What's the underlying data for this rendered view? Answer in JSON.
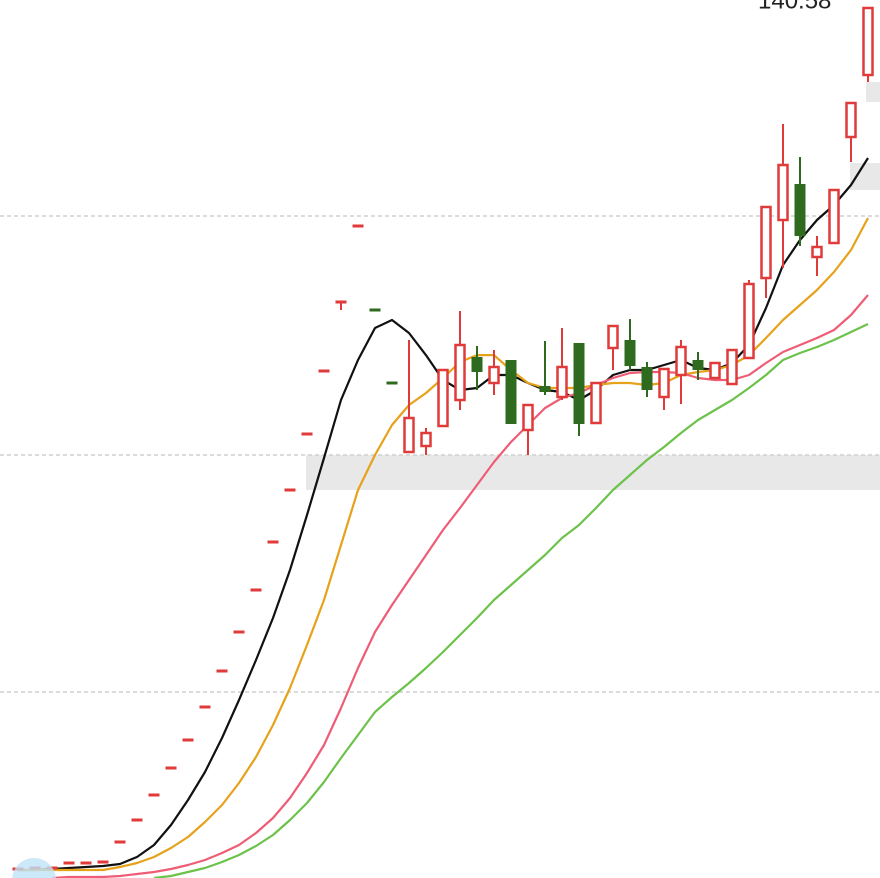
{
  "chart_data": {
    "type": "candlestick",
    "annotation": "140.58",
    "ylim": [
      18.78,
      141.7
    ],
    "gridlines": [
      111.46,
      78.0,
      44.82
    ],
    "up_color": "#e03a3a",
    "down_color": "#2f6b1e",
    "categories": [
      null,
      null,
      null,
      null,
      null,
      null,
      null,
      null,
      null,
      null,
      null,
      null,
      null,
      null,
      null,
      null,
      null,
      null,
      null,
      null,
      null,
      null,
      null,
      null,
      null,
      null,
      null,
      null,
      null,
      null,
      null,
      null,
      null,
      null,
      null,
      null,
      null,
      null,
      null,
      null,
      null,
      null,
      null,
      null,
      null,
      null,
      null,
      null,
      null,
      null,
      null
    ],
    "open": [
      20.04,
      20.18,
      20.18,
      20.88,
      20.88,
      21.02,
      23.82,
      26.9,
      30.4,
      34.18,
      38.1,
      42.72,
      47.76,
      53.22,
      59.1,
      65.82,
      73.1,
      80.94,
      89.76,
      99.42,
      110.06,
      98.3,
      88.08,
      78.42,
      79.26,
      82.06,
      85.7,
      91.72,
      88.08,
      91.3,
      81.5,
      87.66,
      86.12,
      93.68,
      82.48,
      92.98,
      94.1,
      90.32,
      86.12,
      89.2,
      91.3,
      88.78,
      87.94,
      91.58,
      102.78,
      110.9,
      115.94,
      105.72,
      107.68,
      122.52,
      131.2
    ],
    "high": [
      20.04,
      20.18,
      20.18,
      20.88,
      20.88,
      21.02,
      23.82,
      26.9,
      30.4,
      34.18,
      38.1,
      42.72,
      47.76,
      53.22,
      59.1,
      65.82,
      73.1,
      80.94,
      89.76,
      99.42,
      110.06,
      98.3,
      88.08,
      94.1,
      81.78,
      89.9,
      98.16,
      93.26,
      92.7,
      91.3,
      85.0,
      93.96,
      95.78,
      93.68,
      88.08,
      96.06,
      97.04,
      91.02,
      90.04,
      94.1,
      92.42,
      90.88,
      92.7,
      102.5,
      112.72,
      124.34,
      119.72,
      108.66,
      115.1,
      127.28,
      140.58
    ],
    "low": [
      20.04,
      20.18,
      20.18,
      20.88,
      20.88,
      21.02,
      23.82,
      26.9,
      30.4,
      34.18,
      38.1,
      42.72,
      47.76,
      53.22,
      59.1,
      65.82,
      73.1,
      80.94,
      89.76,
      98.3,
      110.06,
      98.3,
      88.08,
      78.42,
      78.0,
      82.06,
      84.3,
      87.1,
      86.4,
      82.34,
      78.0,
      86.4,
      85.7,
      80.66,
      82.48,
      89.9,
      89.9,
      86.12,
      84.3,
      85.14,
      88.5,
      88.78,
      87.94,
      91.58,
      99.98,
      104.18,
      107.26,
      103.06,
      107.68,
      119.02,
      130.22
    ],
    "close": [
      20.04,
      20.18,
      20.18,
      20.88,
      20.88,
      21.02,
      23.82,
      26.9,
      30.4,
      34.18,
      38.1,
      42.72,
      47.76,
      53.22,
      59.1,
      65.82,
      73.1,
      80.94,
      89.76,
      99.42,
      110.06,
      98.3,
      88.08,
      83.18,
      81.08,
      89.9,
      93.4,
      89.62,
      90.32,
      82.34,
      85.0,
      86.82,
      90.32,
      82.34,
      88.08,
      96.06,
      90.46,
      87.1,
      90.04,
      93.12,
      89.9,
      90.88,
      92.7,
      101.94,
      112.72,
      118.6,
      108.66,
      107.12,
      115.1,
      127.28,
      140.58
    ],
    "lines": [
      {
        "color": "#111111",
        "values": [
          19.9,
          19.9,
          20.04,
          20.18,
          20.32,
          20.46,
          20.74,
          21.72,
          23.4,
          26.2,
          29.7,
          33.62,
          38.38,
          43.7,
          49.3,
          55.18,
          61.9,
          69.6,
          77.58,
          85.7,
          91.3,
          95.78,
          96.9,
          95.08,
          91.98,
          88.5,
          87.1,
          87.38,
          89.2,
          89.2,
          88.08,
          87.1,
          86.82,
          85.7,
          87.1,
          89.2,
          89.9,
          89.9,
          90.6,
          91.3,
          90.18,
          89.9,
          90.88,
          93.4,
          98.58,
          104.6,
          108.1,
          110.9,
          113.0,
          115.8,
          119.58
        ]
      },
      {
        "color": "#e5a21a",
        "values": [
          19.9,
          19.9,
          19.9,
          19.9,
          19.9,
          19.9,
          20.32,
          20.88,
          21.72,
          22.98,
          24.52,
          26.62,
          29.0,
          32.08,
          35.72,
          40.2,
          45.38,
          51.4,
          57.7,
          65.4,
          73.1,
          78.0,
          82.2,
          85.0,
          86.68,
          88.78,
          91.02,
          91.98,
          91.98,
          89.9,
          88.08,
          87.38,
          87.38,
          87.38,
          87.8,
          88.08,
          88.08,
          87.8,
          88.08,
          89.2,
          89.62,
          89.9,
          90.6,
          91.98,
          94.38,
          96.9,
          99.0,
          101.1,
          103.62,
          106.7,
          111.18
        ]
      },
      {
        "color": "#ee5d75",
        "values": [
          null,
          null,
          18.78,
          18.92,
          18.92,
          18.92,
          19.06,
          19.34,
          19.62,
          20.04,
          20.6,
          21.3,
          22.28,
          23.4,
          25.08,
          27.18,
          29.98,
          33.48,
          37.4,
          42.58,
          48.18,
          53.22,
          57.0,
          60.5,
          64.0,
          67.5,
          70.58,
          73.8,
          77.02,
          79.82,
          82.2,
          84.58,
          85.98,
          86.68,
          87.8,
          88.78,
          89.48,
          89.62,
          89.62,
          89.48,
          88.78,
          88.5,
          88.5,
          89.2,
          90.88,
          92.42,
          93.4,
          94.38,
          95.5,
          97.6,
          100.4
        ]
      },
      {
        "color": "#6cc24a",
        "values": [
          null,
          null,
          null,
          null,
          null,
          null,
          null,
          null,
          18.78,
          19.06,
          19.62,
          20.18,
          21.02,
          22.0,
          23.26,
          24.8,
          26.9,
          29.28,
          32.22,
          35.58,
          38.8,
          42.02,
          44.12,
          46.08,
          48.18,
          50.42,
          52.8,
          55.18,
          57.7,
          59.8,
          61.9,
          64.0,
          66.38,
          68.2,
          70.58,
          73.1,
          75.2,
          77.3,
          79.12,
          81.08,
          82.9,
          84.3,
          85.7,
          87.38,
          89.2,
          91.3,
          92.28,
          93.12,
          94.1,
          95.22,
          96.34
        ]
      }
    ]
  }
}
